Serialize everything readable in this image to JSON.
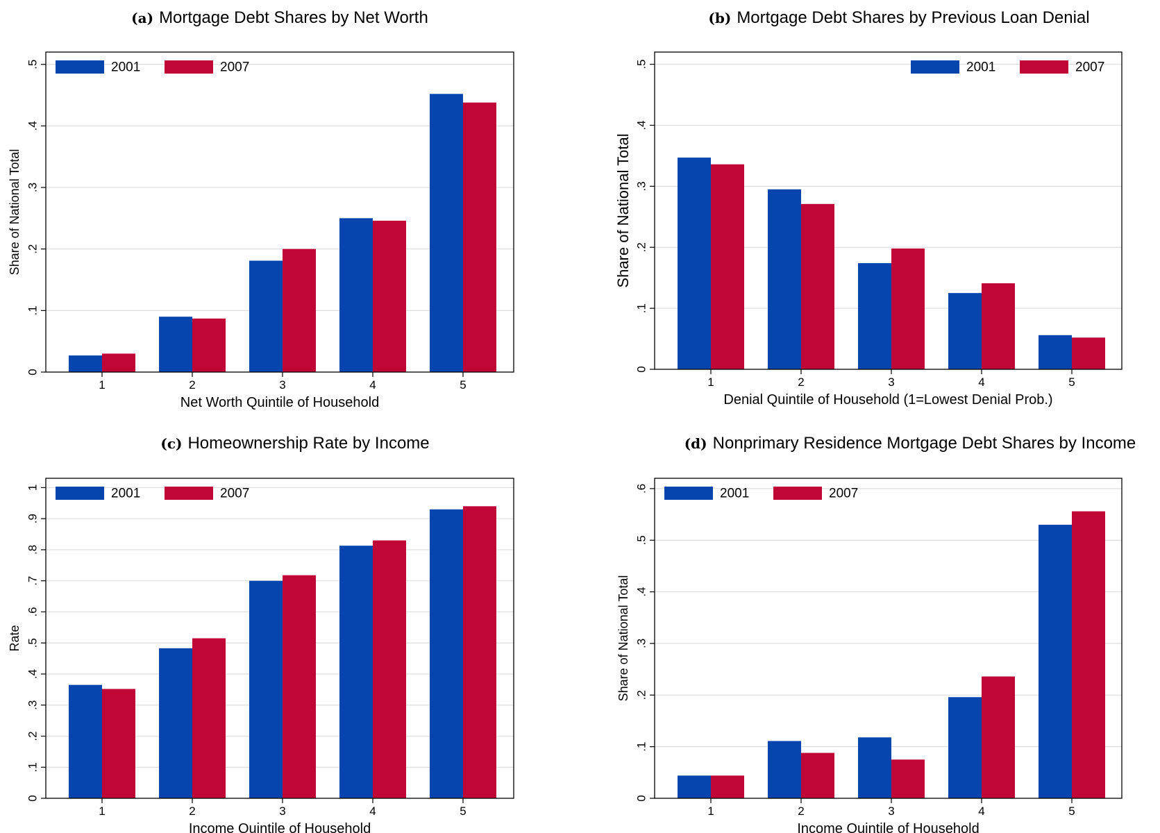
{
  "colors": {
    "series_2001": "#0645AD",
    "series_2007": "#C00636",
    "grid": "#DEDEDE",
    "frame": "#000000"
  },
  "chart_data": [
    {
      "type": "bar",
      "tag": "(a)",
      "title": "Mortgage Debt Shares by Net Worth",
      "xlabel": "Net Worth Quintile of Household",
      "ylabel": "Share of National Total",
      "categories": [
        "1",
        "2",
        "3",
        "4",
        "5"
      ],
      "ylim": [
        0,
        0.52
      ],
      "yticks": [
        0,
        0.1,
        0.2,
        0.3,
        0.4,
        0.5
      ],
      "yticklabels": [
        "0",
        ".1",
        ".2",
        ".3",
        ".4",
        ".5"
      ],
      "legend_position": "top-left",
      "grid": true,
      "series": [
        {
          "name": "2001",
          "values": [
            0.027,
            0.09,
            0.181,
            0.25,
            0.452
          ]
        },
        {
          "name": "2007",
          "values": [
            0.03,
            0.087,
            0.2,
            0.246,
            0.438
          ]
        }
      ]
    },
    {
      "type": "bar",
      "tag": "(b)",
      "title": "Mortgage Debt Shares by Previous Loan Denial",
      "xlabel": "Denial Quintile of Household (1=Lowest Denial Prob.)",
      "ylabel": "Share of National Total",
      "categories": [
        "1",
        "2",
        "3",
        "4",
        "5"
      ],
      "ylim": [
        0,
        0.52
      ],
      "yticks": [
        0,
        0.1,
        0.2,
        0.3,
        0.4,
        0.5
      ],
      "yticklabels": [
        "0",
        ".1",
        ".2",
        ".3",
        ".4",
        ".5"
      ],
      "legend_position": "top-right",
      "grid": true,
      "series": [
        {
          "name": "2001",
          "values": [
            0.347,
            0.295,
            0.174,
            0.125,
            0.056
          ]
        },
        {
          "name": "2007",
          "values": [
            0.336,
            0.271,
            0.198,
            0.141,
            0.052
          ]
        }
      ]
    },
    {
      "type": "bar",
      "tag": "(c)",
      "title": "Homeownership Rate by Income",
      "xlabel": "Income Quintile of Household",
      "ylabel": "Rate",
      "categories": [
        "1",
        "2",
        "3",
        "4",
        "5"
      ],
      "ylim": [
        0,
        1.03
      ],
      "yticks": [
        0,
        0.1,
        0.2,
        0.3,
        0.4,
        0.5,
        0.6,
        0.7,
        0.8,
        0.9,
        1.0
      ],
      "yticklabels": [
        "0",
        ".1",
        ".2",
        ".3",
        ".4",
        ".5",
        ".6",
        ".7",
        ".8",
        ".9",
        "1"
      ],
      "legend_position": "top-left",
      "grid": true,
      "series": [
        {
          "name": "2001",
          "values": [
            0.365,
            0.483,
            0.7,
            0.813,
            0.93
          ]
        },
        {
          "name": "2007",
          "values": [
            0.352,
            0.515,
            0.718,
            0.83,
            0.94
          ]
        }
      ]
    },
    {
      "type": "bar",
      "tag": "(d)",
      "title": "Nonprimary Residence Mortgage Debt Shares by Income",
      "xlabel": "Income Quintile of Household",
      "ylabel": "Share of National Total",
      "categories": [
        "1",
        "2",
        "3",
        "4",
        "5"
      ],
      "ylim": [
        0,
        0.62
      ],
      "yticks": [
        0,
        0.1,
        0.2,
        0.3,
        0.4,
        0.5,
        0.6
      ],
      "yticklabels": [
        "0",
        ".1",
        ".2",
        ".3",
        ".4",
        ".5",
        ".6"
      ],
      "legend_position": "top-left",
      "grid": true,
      "series": [
        {
          "name": "2001",
          "values": [
            0.044,
            0.111,
            0.118,
            0.196,
            0.53
          ]
        },
        {
          "name": "2007",
          "values": [
            0.044,
            0.088,
            0.075,
            0.236,
            0.556
          ]
        }
      ]
    }
  ]
}
